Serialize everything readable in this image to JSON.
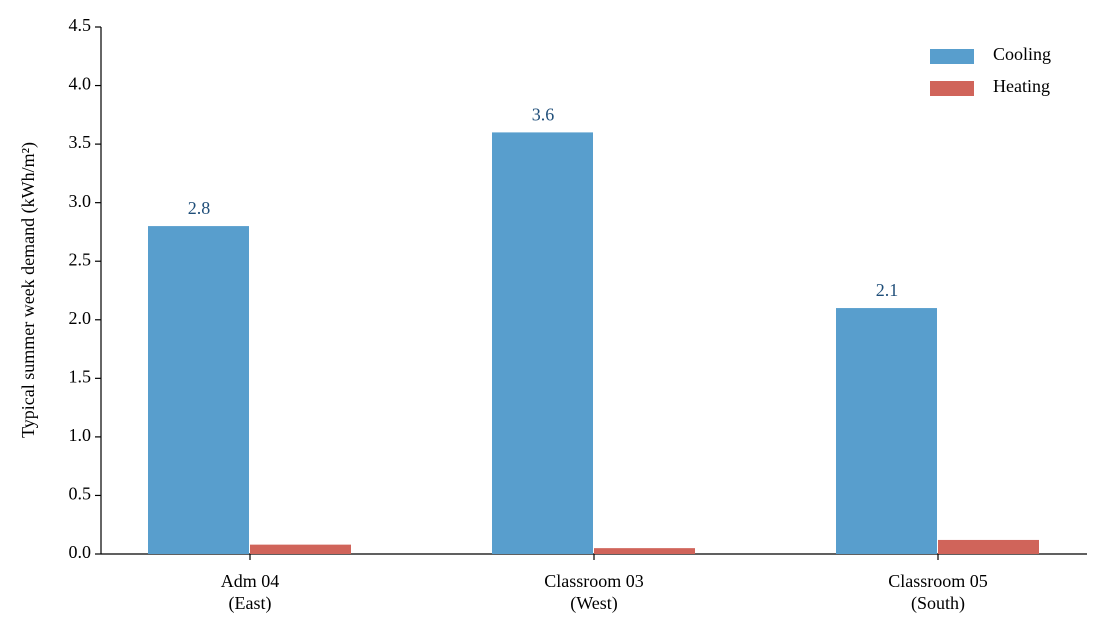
{
  "chart_data": {
    "type": "bar",
    "y_label": "Typical summer week demand (kWh/m²)",
    "categories": [
      "Adm 04\n(East)",
      "Classroom 03\n(West)",
      "Classroom 05\n(South)"
    ],
    "series": [
      {
        "name": "Cooling",
        "color": "#589ecd",
        "values": [
          2.8,
          3.6,
          2.1
        ],
        "show_values": true,
        "label_color": "#1f4e79"
      },
      {
        "name": "Heating",
        "color": "#d0645a",
        "values": [
          0.08,
          0.05,
          0.12
        ],
        "show_values": false
      }
    ],
    "ylim": [
      0,
      4.5
    ],
    "yticks": [
      {
        "value": 0,
        "label": "0.0"
      },
      {
        "value": 0.5,
        "label": "0.5"
      },
      {
        "value": 1,
        "label": "1.0"
      },
      {
        "value": 1.5,
        "label": "1.5"
      },
      {
        "value": 2,
        "label": "2.0"
      },
      {
        "value": 2.5,
        "label": "2.5"
      },
      {
        "value": 3,
        "label": "3.0"
      },
      {
        "value": 3.5,
        "label": "3.5"
      },
      {
        "value": 4,
        "label": "4.0"
      },
      {
        "value": 4.5,
        "label": "4.5"
      }
    ],
    "grid": false,
    "legend": "upper right"
  }
}
